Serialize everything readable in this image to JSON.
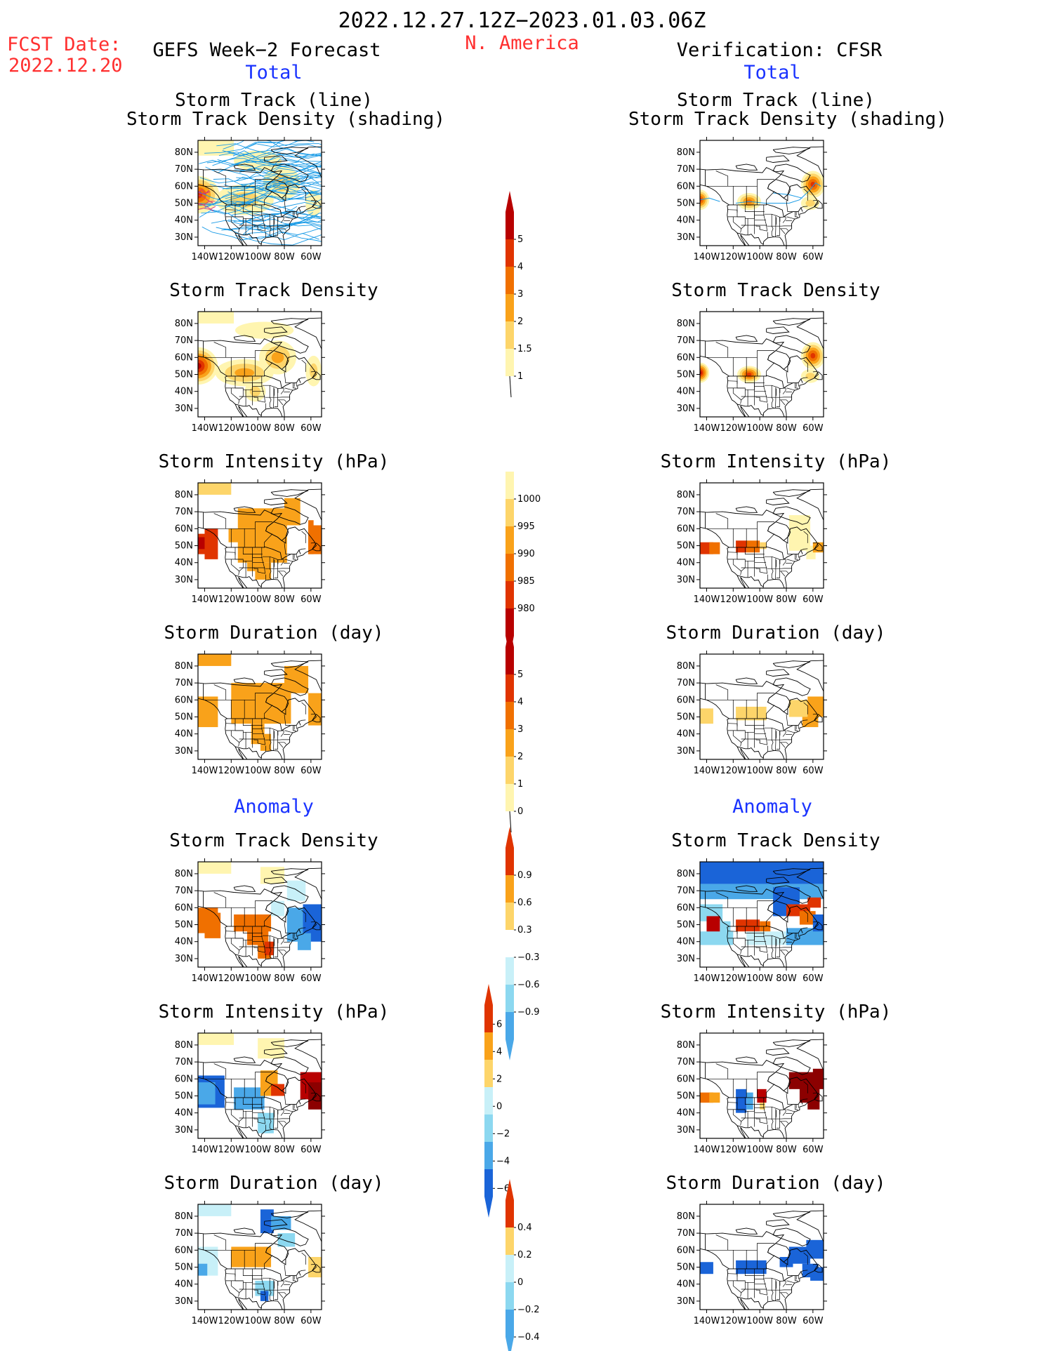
{
  "header": {
    "date_range": "2022.12.27.12Z−2023.01.03.06Z",
    "fcst_label": "FCST Date:",
    "fcst_date": "2022.12.20",
    "region": "N. America",
    "left_title": "GEFS Week−2 Forecast",
    "right_title": "Verification: CFSR",
    "total_left": "Total",
    "total_right": "Total",
    "anomaly_left": "Anomaly",
    "anomaly_right": "Anomaly"
  },
  "axes": {
    "lat_ticks": [
      "80N",
      "70N",
      "60N",
      "50N",
      "40N",
      "30N"
    ],
    "lon_ticks": [
      "140W",
      "120W",
      "100W",
      "80W",
      "60W"
    ]
  },
  "panels": {
    "track_line_title1": "Storm Track (line)",
    "track_line_title2": "Storm Track Density (shading)",
    "density": "Storm Track Density",
    "intensity": "Storm Intensity (hPa)",
    "duration": "Storm Duration (day)"
  },
  "colorbars": {
    "density_total": [
      "5",
      "4",
      "3",
      "2",
      "1.5",
      "1"
    ],
    "intensity_total": [
      "1000",
      "995",
      "990",
      "985",
      "980"
    ],
    "duration_total": [
      "5",
      "4",
      "3",
      "2",
      "1",
      "0"
    ],
    "density_anom": [
      "0.9",
      "0.6",
      "0.3",
      "−0.3",
      "−0.6",
      "−0.9"
    ],
    "intensity_anom": [
      "6",
      "4",
      "2",
      "0",
      "−2",
      "−4",
      "−6"
    ],
    "duration_anom": [
      "0.4",
      "0.2",
      "0",
      "−0.2",
      "−0.4"
    ]
  },
  "colors": {
    "warm": [
      "#fff5b0",
      "#fdd56a",
      "#f9a21a",
      "#f07000",
      "#e03400",
      "#b80000",
      "#8c0000"
    ],
    "cool": [
      "#c8f0f8",
      "#8cd8f0",
      "#4aa8e8",
      "#1a64d8",
      "#0c40c0"
    ],
    "track_line": "#1a9be6"
  }
}
